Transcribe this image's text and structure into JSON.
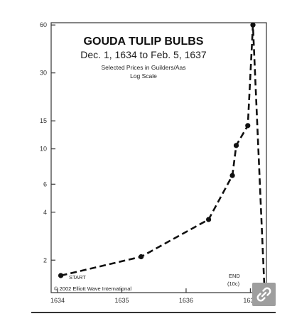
{
  "chart_data": {
    "type": "line",
    "title": "GOUDA TULIP BULBS",
    "subtitle": "Dec. 1, 1634 to Feb. 5, 1637",
    "subtitle2": "Selected Prices in Guilders/Aas",
    "scale_note": "Log Scale",
    "yscale": "log",
    "ylim": [
      1.25,
      62
    ],
    "xlim": [
      1633.9,
      1637.25
    ],
    "y_ticks": [
      2,
      4,
      6,
      10,
      15,
      30,
      60
    ],
    "x_ticks": [
      1634,
      1635,
      1636,
      1637
    ],
    "x_tick_labels": [
      "1634",
      "1635",
      "1636",
      "1637"
    ],
    "series": [
      {
        "values": [
          {
            "x": 1634.05,
            "y": 1.6
          },
          {
            "x": 1635.3,
            "y": 2.1
          },
          {
            "x": 1636.35,
            "y": 3.6
          },
          {
            "x": 1636.72,
            "y": 6.8
          },
          {
            "x": 1636.78,
            "y": 10.5
          },
          {
            "x": 1636.96,
            "y": 14
          },
          {
            "x": 1637.04,
            "y": 60
          },
          {
            "x": 1637.22,
            "y": 1.3
          }
        ]
      }
    ],
    "annotations": {
      "start": "START",
      "end": "END",
      "end_value": "(10c)",
      "copyright": "© 2002 Elliott Wave International"
    },
    "grid": false,
    "legend": "none",
    "line_style": "dashed",
    "line_color": "#111111"
  },
  "link_badge": {
    "icon": "link-icon",
    "color": "#9e9e9e"
  }
}
